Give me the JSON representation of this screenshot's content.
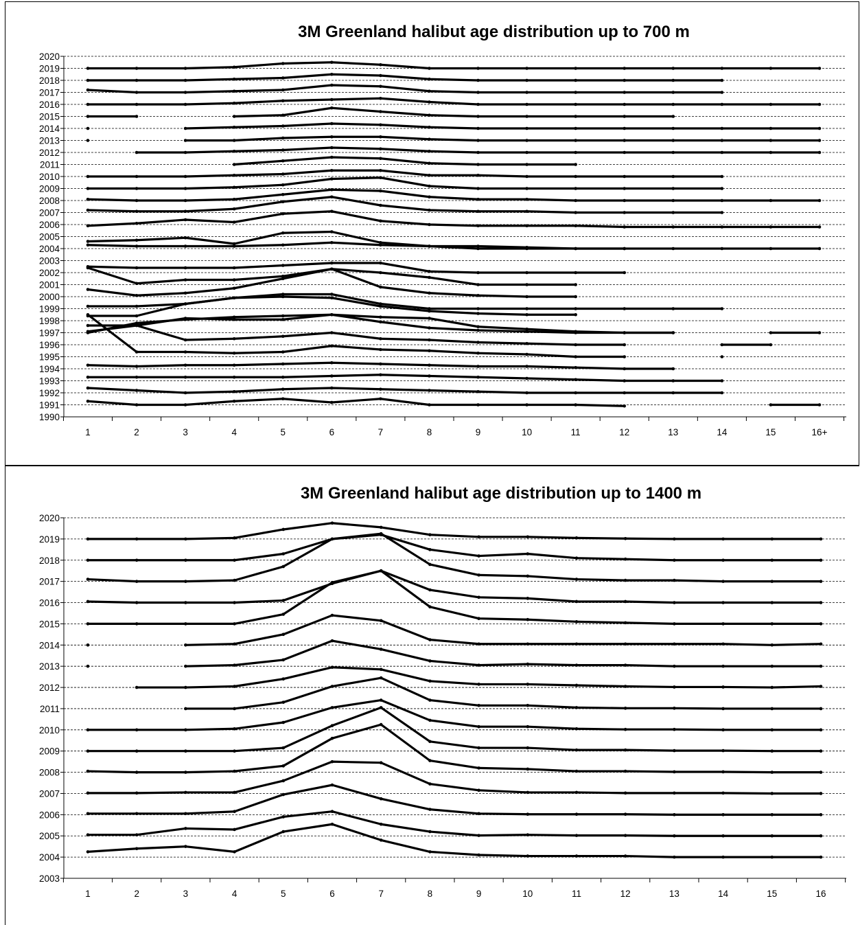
{
  "chart_data": [
    {
      "type": "line",
      "title": "3M Greenland halibut age distribution up to 700 m",
      "xlabel": "",
      "ylabel": "",
      "categories": [
        "1",
        "2",
        "3",
        "4",
        "5",
        "6",
        "7",
        "8",
        "9",
        "10",
        "11",
        "12",
        "13",
        "14",
        "15",
        "16+"
      ],
      "y_ticks": [
        "1990",
        "1991",
        "1992",
        "1993",
        "1994",
        "1995",
        "1996",
        "1997",
        "1998",
        "1999",
        "2000",
        "2001",
        "2002",
        "2003",
        "2004",
        "2005",
        "2006",
        "2007",
        "2008",
        "2009",
        "2010",
        "2011",
        "2012",
        "2013",
        "2014",
        "2015",
        "2016",
        "2017",
        "2018",
        "2019",
        "2020"
      ],
      "ylim": [
        1990,
        2020
      ],
      "grid": "horizontal dashed",
      "legend": "none",
      "series": [
        {
          "year": 1991,
          "values": [
            0.3,
            0,
            0,
            0.3,
            0.5,
            0.2,
            0.5,
            0,
            0,
            0,
            0,
            -0.1,
            null,
            null,
            0,
            0
          ]
        },
        {
          "year": 1992,
          "values": [
            0.4,
            0.2,
            0,
            0.1,
            0.3,
            0.4,
            0.3,
            0.2,
            0.1,
            0,
            0,
            0,
            0,
            0,
            null,
            null
          ]
        },
        {
          "year": 1993,
          "values": [
            0.3,
            0.3,
            0.3,
            0.3,
            0.3,
            0.4,
            0.5,
            0.4,
            0.3,
            0.2,
            0.1,
            0,
            0,
            0,
            null,
            null
          ]
        },
        {
          "year": 1994,
          "values": [
            0.3,
            0.2,
            0.3,
            0.3,
            0.4,
            0.5,
            0.4,
            0.3,
            0.2,
            0.2,
            0.1,
            0,
            0,
            null,
            null,
            null
          ]
        },
        {
          "year": 1995,
          "values": [
            3.5,
            0.4,
            0.4,
            0.3,
            0.4,
            0.9,
            0.6,
            0.5,
            0.3,
            0.2,
            0,
            0,
            null,
            0,
            null,
            null
          ]
        },
        {
          "year": 1996,
          "values": [
            1.6,
            1.6,
            0.4,
            0.5,
            0.7,
            1,
            0.5,
            0.4,
            0.2,
            0.1,
            0,
            0,
            null,
            0,
            0,
            null
          ]
        },
        {
          "year": 1997,
          "values": [
            0,
            0.8,
            1.1,
            1.3,
            1.4,
            1.5,
            1.3,
            1.2,
            0.5,
            0.3,
            0.1,
            0,
            0,
            null,
            0,
            0
          ]
        },
        {
          "year": 1998,
          "values": [
            -0.9,
            -0.4,
            0.2,
            0.1,
            0.1,
            0.5,
            -0.1,
            -0.6,
            -0.8,
            -0.9,
            -1,
            -1,
            -1,
            null,
            null,
            null
          ]
        },
        {
          "year": 1999,
          "values": [
            -0.6,
            -0.6,
            0.4,
            0.9,
            1.2,
            1.2,
            0.4,
            0,
            0,
            0,
            0,
            0,
            0,
            0,
            null,
            null
          ]
        },
        {
          "year": 2000,
          "values": [
            -0.8,
            -0.8,
            -0.6,
            -0.1,
            0,
            -0.1,
            -0.8,
            -1.2,
            -1.4,
            -1.5,
            -1.5,
            null,
            null,
            null,
            null,
            null
          ]
        },
        {
          "year": 2001,
          "values": [
            -0.4,
            -0.9,
            -0.7,
            -0.3,
            0.5,
            1.3,
            -0.2,
            -0.7,
            -0.9,
            -1,
            -1,
            null,
            null,
            null,
            null,
            null
          ]
        },
        {
          "year": 2002,
          "values": [
            0.4,
            -0.9,
            -0.6,
            -0.6,
            -0.3,
            0.3,
            0,
            -0.4,
            -1,
            -1,
            -1,
            null,
            null,
            null,
            null,
            null
          ]
        },
        {
          "year": 2003,
          "values": [
            -0.5,
            -0.6,
            -0.6,
            -0.6,
            -0.4,
            -0.2,
            -0.2,
            -0.9,
            -1,
            -1,
            -1,
            -1,
            null,
            null,
            null,
            null
          ]
        },
        {
          "year": 2004,
          "values": [
            0.3,
            0.2,
            0.2,
            0.2,
            0.3,
            0.5,
            0.3,
            0.2,
            0.2,
            0.1,
            0,
            0,
            null,
            null,
            null,
            null
          ]
        },
        {
          "year": 2005,
          "values": [
            -0.4,
            -0.3,
            -0.1,
            -0.6,
            0.3,
            0.4,
            -0.5,
            -0.8,
            -1,
            -1,
            -1,
            -1,
            -1,
            -1,
            -1,
            -1
          ]
        },
        {
          "year": 2006,
          "values": [
            -0.1,
            0.1,
            0.4,
            0.2,
            0.9,
            1.1,
            0.3,
            0,
            -0.1,
            -0.1,
            -0.1,
            -0.2,
            -0.2,
            -0.2,
            -0.2,
            -0.2
          ]
        },
        {
          "year": 2007,
          "values": [
            0.2,
            0.1,
            0.1,
            0.3,
            0.9,
            1.3,
            0.6,
            0.2,
            0.1,
            0.1,
            0,
            0,
            0,
            0,
            null,
            null
          ]
        },
        {
          "year": 2008,
          "values": [
            0.1,
            0,
            0,
            0.1,
            0.5,
            0.9,
            0.8,
            0.3,
            0.1,
            0.1,
            0,
            0,
            0,
            0,
            0,
            0
          ]
        },
        {
          "year": 2009,
          "values": [
            0,
            0,
            0,
            0.1,
            0.3,
            0.8,
            0.9,
            0.2,
            0,
            0,
            0,
            0,
            0,
            0,
            null,
            null
          ]
        },
        {
          "year": 2010,
          "values": [
            0,
            0,
            0,
            0.1,
            0.2,
            0.5,
            0.5,
            0.1,
            0.1,
            0,
            0,
            0,
            0,
            0,
            null,
            null
          ]
        },
        {
          "year": 2011,
          "values": [
            null,
            null,
            null,
            0,
            0.3,
            0.6,
            0.5,
            0.1,
            0,
            0,
            0,
            null,
            null,
            null,
            null,
            null
          ]
        },
        {
          "year": 2012,
          "values": [
            null,
            0,
            0,
            0.1,
            0.2,
            0.4,
            0.3,
            0.1,
            0,
            0,
            0,
            0,
            0,
            0,
            0,
            0
          ]
        },
        {
          "year": 2013,
          "values": [
            0,
            null,
            0,
            0,
            0.2,
            0.3,
            0.3,
            0.1,
            0,
            0,
            0,
            0,
            0,
            0,
            0,
            0
          ]
        },
        {
          "year": 2014,
          "values": [
            0,
            null,
            0,
            0.1,
            0.2,
            0.4,
            0.3,
            0.1,
            0,
            0,
            0,
            0,
            0,
            0,
            0,
            0
          ]
        },
        {
          "year": 2015,
          "values": [
            0,
            0,
            null,
            0,
            0.1,
            0.7,
            0.4,
            0.1,
            0,
            0,
            0,
            0,
            0,
            null,
            null,
            null
          ]
        },
        {
          "year": 2016,
          "values": [
            0,
            0,
            0,
            0.1,
            0.3,
            0.4,
            0.5,
            0.2,
            0,
            0,
            0,
            0,
            0,
            0,
            0,
            0
          ]
        },
        {
          "year": 2017,
          "values": [
            0.2,
            0,
            0,
            0.1,
            0.2,
            0.6,
            0.5,
            0.1,
            0,
            0,
            0,
            0,
            0,
            0,
            null,
            null
          ]
        },
        {
          "year": 2018,
          "values": [
            0,
            0,
            0,
            0.1,
            0.2,
            0.5,
            0.4,
            0.1,
            0,
            0,
            0,
            0,
            0,
            0,
            null,
            null
          ]
        },
        {
          "year": 2019,
          "values": [
            0,
            0,
            0,
            0.1,
            0.4,
            0.5,
            0.3,
            0,
            0,
            0,
            0,
            0,
            0,
            0,
            0,
            0
          ]
        }
      ]
    },
    {
      "type": "line",
      "title": "3M Greenland halibut age distribution up to 1400 m",
      "xlabel": "",
      "ylabel": "",
      "categories": [
        "1",
        "2",
        "3",
        "4",
        "5",
        "6",
        "7",
        "8",
        "9",
        "10",
        "11",
        "12",
        "13",
        "14",
        "15",
        "16"
      ],
      "y_ticks": [
        "2003",
        "2004",
        "2005",
        "2006",
        "2007",
        "2008",
        "2009",
        "2010",
        "2011",
        "2012",
        "2013",
        "2014",
        "2015",
        "2016",
        "2017",
        "2018",
        "2019",
        "2020"
      ],
      "ylim": [
        2003,
        2020
      ],
      "grid": "horizontal dashed",
      "legend": "none",
      "series": [
        {
          "year": 2004,
          "values": [
            0.25,
            0.4,
            0.5,
            0.25,
            1.2,
            1.55,
            0.8,
            0.25,
            0.1,
            0.05,
            0.05,
            0.05,
            0,
            0,
            0,
            0
          ]
        },
        {
          "year": 2005,
          "values": [
            0.05,
            0.05,
            0.35,
            0.3,
            0.9,
            1.15,
            0.55,
            0.2,
            0.02,
            0.05,
            0.02,
            0.02,
            0,
            0,
            0,
            0
          ]
        },
        {
          "year": 2006,
          "values": [
            0.05,
            0.05,
            0.05,
            0.15,
            0.95,
            1.4,
            0.75,
            0.25,
            0.05,
            0.02,
            0.02,
            0.02,
            0,
            0,
            0,
            0
          ]
        },
        {
          "year": 2007,
          "values": [
            0.02,
            0.02,
            0.05,
            0.05,
            0.6,
            1.5,
            1.45,
            0.45,
            0.15,
            0.05,
            0.05,
            0.02,
            0.02,
            0.02,
            0,
            0
          ]
        },
        {
          "year": 2008,
          "values": [
            0.05,
            0,
            0,
            0.05,
            0.3,
            1.6,
            2.25,
            0.55,
            0.2,
            0.15,
            0.05,
            0.05,
            0.02,
            0.02,
            0,
            0
          ]
        },
        {
          "year": 2009,
          "values": [
            0,
            0,
            0,
            0,
            0.15,
            1.2,
            2.05,
            0.45,
            0.15,
            0.15,
            0.05,
            0.05,
            0.02,
            0.02,
            0,
            0
          ]
        },
        {
          "year": 2010,
          "values": [
            0,
            0,
            0,
            0.05,
            0.35,
            1.05,
            1.4,
            0.45,
            0.15,
            0.15,
            0.05,
            0.02,
            0.02,
            0,
            0,
            0
          ]
        },
        {
          "year": 2011,
          "values": [
            null,
            null,
            0,
            0,
            0.3,
            1.05,
            1.45,
            0.4,
            0.15,
            0.15,
            0.05,
            0.02,
            0.02,
            0,
            0,
            0
          ]
        },
        {
          "year": 2012,
          "values": [
            null,
            0,
            0,
            0.05,
            0.4,
            0.95,
            0.85,
            0.3,
            0.15,
            0.15,
            0.1,
            0.05,
            0.02,
            0.02,
            0,
            0.05
          ]
        },
        {
          "year": 2013,
          "values": [
            0,
            null,
            0,
            0.05,
            0.3,
            1.2,
            0.8,
            0.25,
            0.05,
            0.1,
            0.05,
            0.05,
            0,
            0,
            0,
            0
          ]
        },
        {
          "year": 2014,
          "values": [
            0,
            null,
            0,
            0.05,
            0.5,
            1.4,
            1.15,
            0.25,
            0.05,
            0.05,
            0.05,
            0.05,
            0.05,
            0.05,
            0,
            0.05
          ]
        },
        {
          "year": 2015,
          "values": [
            0,
            0,
            0,
            0,
            0.45,
            1.95,
            2.5,
            0.8,
            0.25,
            0.2,
            0.1,
            0.05,
            0,
            0,
            0,
            0
          ]
        },
        {
          "year": 2016,
          "values": [
            0.05,
            0,
            0,
            0,
            0.1,
            0.9,
            1.5,
            0.6,
            0.25,
            0.2,
            0.05,
            0.05,
            0,
            0,
            0,
            0
          ]
        },
        {
          "year": 2017,
          "values": [
            0.1,
            0,
            0,
            0.05,
            0.7,
            2,
            2.25,
            0.8,
            0.3,
            0.25,
            0.1,
            0.05,
            0.05,
            0,
            0,
            0
          ]
        },
        {
          "year": 2018,
          "values": [
            0,
            0,
            0,
            0,
            0.3,
            1,
            1.2,
            0.5,
            0.2,
            0.3,
            0.1,
            0.05,
            0,
            0,
            0,
            0
          ]
        },
        {
          "year": 2019,
          "values": [
            0,
            0,
            0,
            0.05,
            0.45,
            0.75,
            0.55,
            0.2,
            0.1,
            0.1,
            0.05,
            0.02,
            0,
            0,
            0,
            0
          ]
        }
      ]
    }
  ]
}
